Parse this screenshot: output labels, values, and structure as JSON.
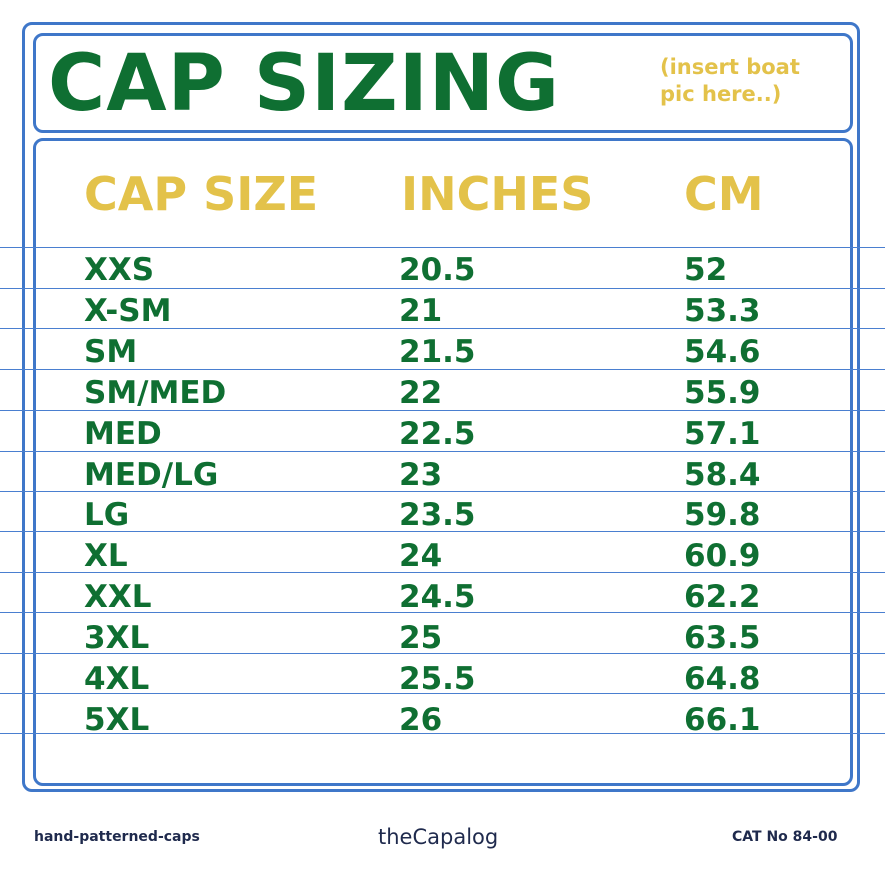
{
  "title": "CAP SIZING",
  "note_lines": [
    "(insert boat",
    "pic here..)"
  ],
  "table": {
    "headers": [
      "CAP SIZE",
      "INCHES",
      "CM"
    ],
    "rows": [
      [
        "XXS",
        "20.5",
        "52"
      ],
      [
        "X-SM",
        "21",
        "53.3"
      ],
      [
        "SM",
        "21.5",
        "54.6"
      ],
      [
        "SM/MED",
        "22",
        "55.9"
      ],
      [
        "MED",
        "22.5",
        "57.1"
      ],
      [
        "MED/LG",
        "23",
        "58.4"
      ],
      [
        "LG",
        "23.5",
        "59.8"
      ],
      [
        "XL",
        "24",
        "60.9"
      ],
      [
        "XXL",
        "24.5",
        "62.2"
      ],
      [
        "3XL",
        "25",
        "63.5"
      ],
      [
        "4XL",
        "25.5",
        "64.8"
      ],
      [
        "5XL",
        "26",
        "66.1"
      ]
    ]
  },
  "footer": {
    "left": "hand-patterned-caps",
    "center": "theCapalog",
    "right": "CAT No 84-00"
  },
  "colors": {
    "green": "#0f6f32",
    "yellow": "#e3c24a",
    "blue": "#3f77c9"
  }
}
